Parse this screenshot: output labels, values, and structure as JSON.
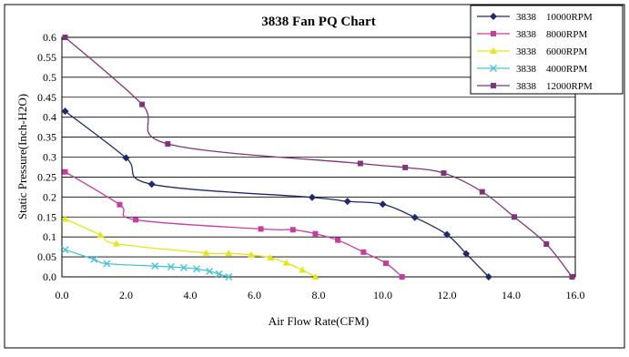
{
  "chart_data": {
    "type": "line",
    "title": "3838 Fan PQ Chart",
    "xlabel": "Air Flow Rate(CFM)",
    "ylabel": "Static Pressure(Inch-H2O)",
    "xlim": [
      0,
      16
    ],
    "ylim": [
      0,
      0.6
    ],
    "x_ticks": [
      "0.0",
      "2.0",
      "4.0",
      "6.0",
      "8.0",
      "10.0",
      "12.0",
      "14.0",
      "16.0"
    ],
    "y_ticks": [
      "0.0",
      "0.05",
      "0.1",
      "0.15",
      "0.2",
      "0.25",
      "0.3",
      "0.35",
      "0.4",
      "0.45",
      "0.5",
      "0.55",
      "0.6"
    ],
    "grid": "horizontal",
    "legend_position": "top-right",
    "series": [
      {
        "name": "3838    10000RPM",
        "color": "#1f2a6b",
        "marker": "diamond",
        "points": [
          [
            0.1,
            0.415
          ],
          [
            2.0,
            0.298
          ],
          [
            2.8,
            0.232
          ],
          [
            7.8,
            0.199
          ],
          [
            8.9,
            0.189
          ],
          [
            10.0,
            0.182
          ],
          [
            11.0,
            0.149
          ],
          [
            12.0,
            0.106
          ],
          [
            12.6,
            0.058
          ],
          [
            13.3,
            0.0
          ]
        ]
      },
      {
        "name": "3838    8000RPM",
        "color": "#c73c9f",
        "marker": "square",
        "points": [
          [
            0.1,
            0.263
          ],
          [
            1.8,
            0.181
          ],
          [
            2.3,
            0.143
          ],
          [
            6.2,
            0.12
          ],
          [
            7.2,
            0.118
          ],
          [
            7.9,
            0.108
          ],
          [
            8.6,
            0.092
          ],
          [
            9.4,
            0.062
          ],
          [
            10.1,
            0.034
          ],
          [
            10.6,
            0.0
          ]
        ]
      },
      {
        "name": "3838    6000RPM",
        "color": "#e3e61a",
        "marker": "triangle",
        "points": [
          [
            0.1,
            0.145
          ],
          [
            1.2,
            0.105
          ],
          [
            1.7,
            0.083
          ],
          [
            4.5,
            0.06
          ],
          [
            5.2,
            0.059
          ],
          [
            5.9,
            0.055
          ],
          [
            6.5,
            0.048
          ],
          [
            7.0,
            0.035
          ],
          [
            7.5,
            0.017
          ],
          [
            7.9,
            0.0
          ]
        ]
      },
      {
        "name": "3838    4000RPM",
        "color": "#49c3d5",
        "marker": "x",
        "points": [
          [
            0.1,
            0.068
          ],
          [
            1.0,
            0.044
          ],
          [
            1.4,
            0.033
          ],
          [
            2.9,
            0.027
          ],
          [
            3.4,
            0.025
          ],
          [
            3.8,
            0.023
          ],
          [
            4.2,
            0.02
          ],
          [
            4.6,
            0.014
          ],
          [
            4.9,
            0.007
          ],
          [
            5.2,
            0.0
          ]
        ]
      },
      {
        "name": "3838    12000RPM",
        "color": "#80357a",
        "marker": "square",
        "points": [
          [
            0.1,
            0.6
          ],
          [
            2.5,
            0.432
          ],
          [
            3.3,
            0.333
          ],
          [
            9.3,
            0.284
          ],
          [
            10.7,
            0.274
          ],
          [
            11.9,
            0.26
          ],
          [
            13.1,
            0.213
          ],
          [
            14.1,
            0.15
          ],
          [
            15.1,
            0.082
          ],
          [
            15.9,
            0.0
          ]
        ]
      }
    ]
  }
}
